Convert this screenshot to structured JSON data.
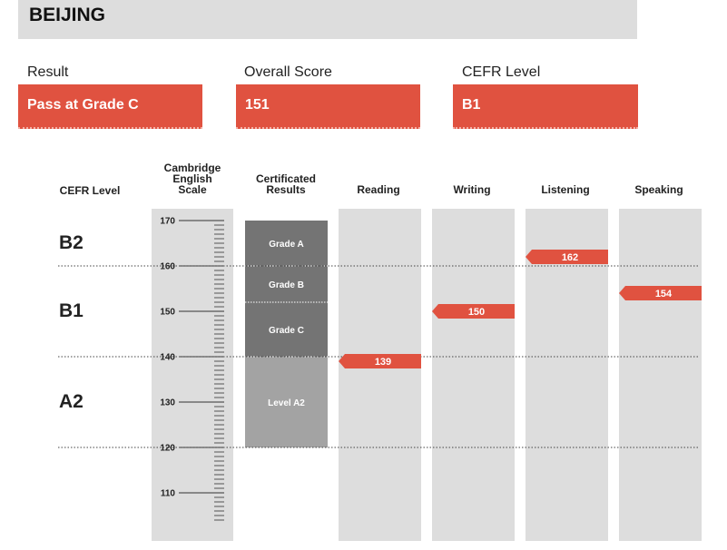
{
  "header": {
    "title": "BEIJING"
  },
  "summary": {
    "result_label": "Result",
    "result_value": "Pass at Grade C",
    "score_label": "Overall Score",
    "score_value": "151",
    "cefr_label": "CEFR Level",
    "cefr_value": "B1"
  },
  "colors": {
    "accent": "#e05240",
    "panel": "#dddddd",
    "grade_dark": "#747474",
    "grade_light": "#a3a3a3"
  },
  "chart_data": {
    "type": "bar",
    "columns": {
      "cefr": "CEFR Level",
      "scale": [
        "Cambridge",
        "English",
        "Scale"
      ],
      "cert": [
        "Certificated",
        "Results"
      ]
    },
    "scale_ticks": [
      170,
      160,
      150,
      140,
      130,
      120,
      110
    ],
    "ylim": [
      104,
      174
    ],
    "cefr_bands": [
      {
        "label": "B2",
        "value": 165
      },
      {
        "label": "B1",
        "value": 150
      },
      {
        "label": "A2",
        "value": 130
      }
    ],
    "cefr_boundaries": [
      160,
      140,
      120
    ],
    "grades": [
      {
        "label": "Grade A",
        "from": 160,
        "to": 170,
        "shade": "dark"
      },
      {
        "label": "Grade B",
        "from": 152,
        "to": 160,
        "shade": "dark"
      },
      {
        "label": "Grade C",
        "from": 140,
        "to": 152,
        "shade": "dark"
      },
      {
        "label": "Level A2",
        "from": 120,
        "to": 140,
        "shade": "light"
      }
    ],
    "categories": [
      "Reading",
      "Writing",
      "Listening",
      "Speaking"
    ],
    "values": [
      139,
      150,
      162,
      154
    ]
  }
}
